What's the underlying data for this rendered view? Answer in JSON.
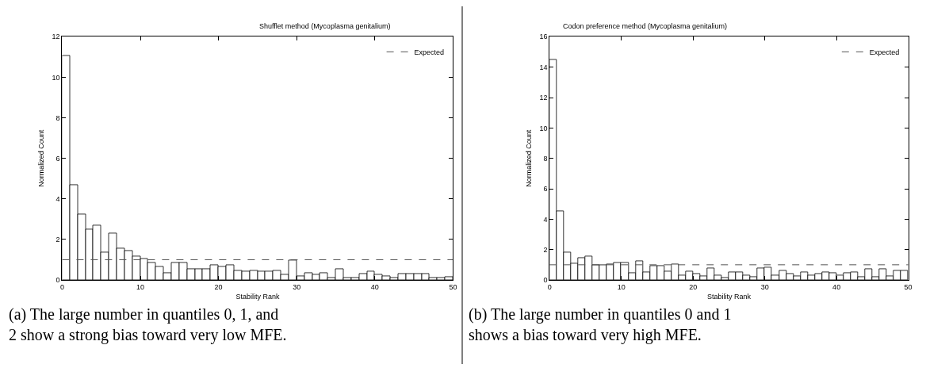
{
  "chart_data": [
    {
      "type": "histogram",
      "title": "Shufflet method (Mycoplasma genitalium)",
      "xlabel": "Stability Rank",
      "ylabel": "Normalized Count",
      "bins": [
        0,
        1,
        2,
        3,
        4,
        5,
        6,
        7,
        8,
        9,
        10,
        11,
        12,
        13,
        14,
        15,
        16,
        17,
        18,
        19,
        20,
        21,
        22,
        23,
        24,
        25,
        26,
        27,
        28,
        29,
        30,
        31,
        32,
        33,
        34,
        35,
        36,
        37,
        38,
        39,
        40,
        41,
        42,
        43,
        44,
        45,
        46,
        47,
        48,
        49,
        50
      ],
      "values": [
        11.05,
        4.7,
        3.25,
        2.5,
        2.7,
        1.35,
        2.3,
        1.55,
        1.45,
        1.15,
        1.05,
        0.85,
        0.65,
        0.35,
        0.85,
        0.85,
        0.55,
        0.55,
        0.55,
        0.75,
        0.65,
        0.75,
        0.45,
        0.4,
        0.45,
        0.4,
        0.4,
        0.45,
        0.25,
        0.95,
        0.2,
        0.35,
        0.25,
        0.35,
        0.1,
        0.55,
        0.1,
        0.1,
        0.3,
        0.4,
        0.25,
        0.2,
        0.1,
        0.3,
        0.3,
        0.3,
        0.3,
        0.1,
        0.1,
        0.15
      ],
      "color": "#ffffff",
      "xlim": [
        0,
        50
      ],
      "xticks": [
        0,
        10,
        20,
        30,
        40,
        50
      ],
      "ylim": [
        0,
        12
      ],
      "yticks": [
        0,
        2,
        4,
        6,
        8,
        10,
        12
      ],
      "ref_lines": [
        {
          "axis": "y",
          "value": 1,
          "label": "Expected",
          "color": "#555555",
          "line_style": "dashed"
        }
      ],
      "legend": "top right",
      "annotations": [
        "(a) The large number in quantiles 0, 1, and 2 show a strong bias toward very low MFE."
      ]
    },
    {
      "type": "histogram",
      "title": "Codon preference method (Mycoplasma genitalium)",
      "xlabel": "Stability Rank",
      "ylabel": "Normalized Count",
      "bins": [
        0,
        1,
        2,
        3,
        4,
        5,
        6,
        7,
        8,
        9,
        10,
        11,
        12,
        13,
        14,
        15,
        16,
        17,
        18,
        19,
        20,
        21,
        22,
        23,
        24,
        25,
        26,
        27,
        28,
        29,
        30,
        31,
        32,
        33,
        34,
        35,
        36,
        37,
        38,
        39,
        40,
        41,
        42,
        43,
        44,
        45,
        46,
        47,
        48,
        49,
        50
      ],
      "values": [
        14.5,
        4.5,
        1.8,
        1.1,
        1.45,
        1.55,
        1.0,
        0.95,
        1.05,
        1.15,
        1.15,
        0.45,
        1.25,
        0.5,
        0.9,
        0.9,
        0.55,
        1.05,
        0.3,
        0.55,
        0.4,
        0.25,
        0.75,
        0.3,
        0.15,
        0.5,
        0.5,
        0.3,
        0.2,
        0.75,
        0.8,
        0.3,
        0.6,
        0.4,
        0.25,
        0.5,
        0.3,
        0.4,
        0.5,
        0.45,
        0.3,
        0.45,
        0.5,
        0.2,
        0.7,
        0.2,
        0.7,
        0.25,
        0.6,
        0.6
      ],
      "color": "#ffffff",
      "xlim": [
        0,
        50
      ],
      "xticks": [
        0,
        10,
        20,
        30,
        40,
        50
      ],
      "ylim": [
        0,
        16
      ],
      "yticks": [
        0,
        2,
        4,
        6,
        8,
        10,
        12,
        14,
        16
      ],
      "ref_lines": [
        {
          "axis": "y",
          "value": 1,
          "label": "Expected",
          "color": "#555555",
          "line_style": "dashed"
        }
      ],
      "legend": "top right",
      "annotations": [
        "(b) The large number in quantiles 0 and 1 shows a bias toward very high MFE."
      ]
    }
  ]
}
